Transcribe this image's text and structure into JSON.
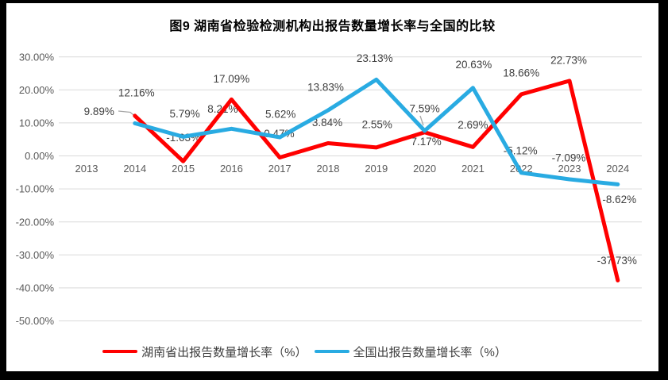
{
  "title": "图9 湖南省检验检测机构出报告数量增长率与全国的比较",
  "chart_data": {
    "type": "line",
    "title": "图9 湖南省检验检测机构出报告数量增长率与全国的比较",
    "categories": [
      "2013",
      "2014",
      "2015",
      "2016",
      "2017",
      "2018",
      "2019",
      "2020",
      "2021",
      "2022",
      "2023",
      "2024"
    ],
    "series": [
      {
        "name": "湖南省出报告数量增长率（%）",
        "color": "#FF0000",
        "values": [
          null,
          12.16,
          -1.63,
          17.09,
          -0.47,
          3.84,
          2.55,
          7.17,
          2.69,
          18.66,
          22.73,
          -37.73
        ]
      },
      {
        "name": "全国出报告数量增长率（%）",
        "color": "#29ABE2",
        "values": [
          null,
          9.89,
          5.79,
          8.21,
          5.62,
          13.83,
          23.13,
          7.59,
          20.63,
          -5.12,
          -7.09,
          -8.62
        ]
      }
    ],
    "ylim": [
      -50,
      30
    ],
    "ytick_step": 10,
    "ytick_labels": [
      "30.00%",
      "20.00%",
      "10.00%",
      "0.00%",
      "-10.00%",
      "-20.00%",
      "-30.00%",
      "-40.00%",
      "-50.00%"
    ],
    "grid": true,
    "legend_position": "bottom",
    "data_labels": true,
    "label_format": "0.00%"
  },
  "colors": {
    "background": "#FFFFFF",
    "frame_border": "#000000",
    "gridline": "#D9D9D9",
    "axis_text": "#595959",
    "label_text": "#404040",
    "leader_line": "#A6A6A6"
  }
}
